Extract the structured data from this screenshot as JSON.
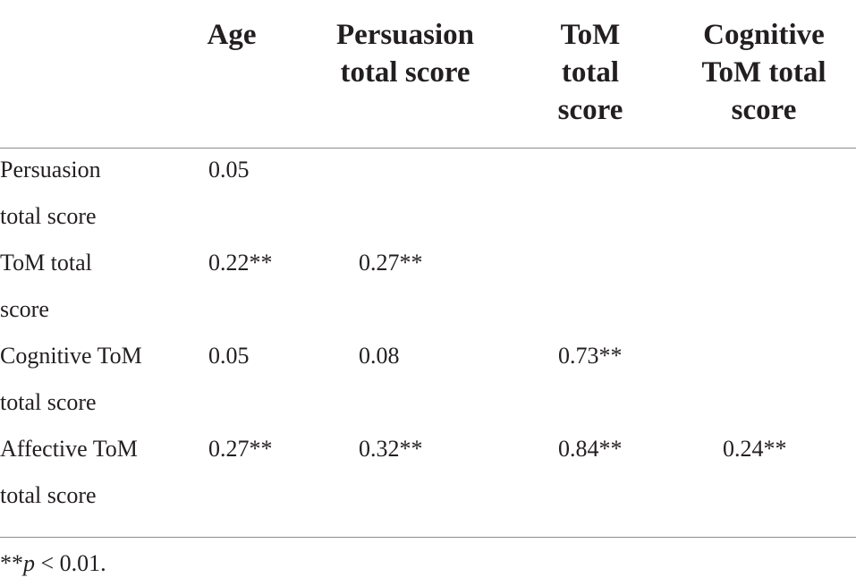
{
  "table": {
    "columns": [
      "",
      "Age",
      "Persuasion\ntotal score",
      "ToM\ntotal\nscore",
      "Cognitive\nToM total\nscore"
    ],
    "rows": [
      {
        "label": "Persuasion\ntotal score",
        "cells": [
          "0.05",
          "",
          "",
          ""
        ]
      },
      {
        "label": "ToM total\nscore",
        "cells": [
          "0.22**",
          "0.27**",
          "",
          ""
        ]
      },
      {
        "label": "Cognitive ToM\ntotal score",
        "cells": [
          "0.05",
          "0.08",
          "0.73**",
          ""
        ]
      },
      {
        "label": "Affective ToM\ntotal score",
        "cells": [
          "0.27**",
          "0.32**",
          "0.84**",
          "0.24**"
        ]
      }
    ]
  },
  "footnote": {
    "prefix": "**",
    "p": "p",
    "rest": " < 0.01."
  }
}
